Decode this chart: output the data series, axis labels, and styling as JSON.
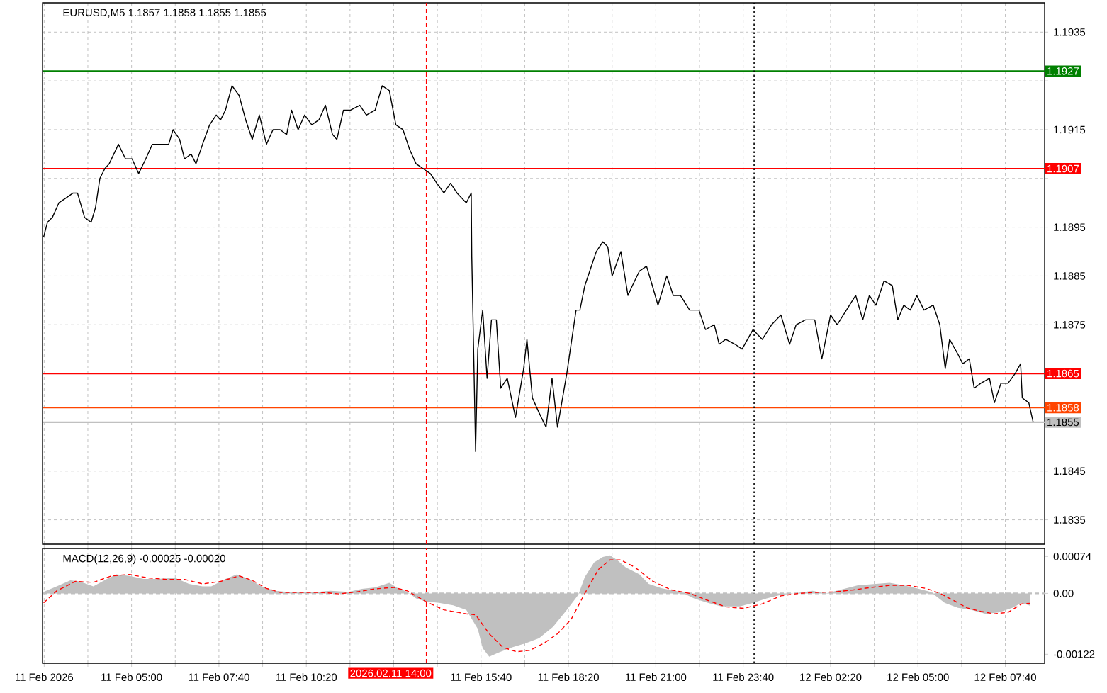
{
  "chart_data": [
    {
      "type": "line",
      "title": "EURUSD,M5 1.1857 1.1858 1.1855 1.1855",
      "xlim": [
        "2026-02-11T02:17",
        "2026-02-12T08:52"
      ],
      "ylim": [
        1.183,
        1.1941
      ],
      "xticks": [
        "2026-02-11T02:20",
        "2026-02-11T03:40",
        "2026-02-11T05:00",
        "2026-02-11T06:20",
        "2026-02-11T07:40",
        "2026-02-11T09:00",
        "2026-02-11T10:20",
        "2026-02-11T11:40",
        "2026-02-11T13:00",
        "2026-02-11T14:20",
        "2026-02-11T15:40",
        "2026-02-11T17:00",
        "2026-02-11T18:20",
        "2026-02-11T19:40",
        "2026-02-11T21:00",
        "2026-02-11T22:20",
        "2026-02-11T23:40",
        "2026-02-12T01:00",
        "2026-02-12T02:20",
        "2026-02-12T03:40",
        "2026-02-12T05:00",
        "2026-02-12T06:20",
        "2026-02-12T07:40"
      ],
      "yticks": [
        1.1835,
        1.1845,
        {
          "value": 1.1855,
          "label": null
        },
        {
          "value": 1.1865,
          "label": null
        },
        1.1875,
        1.1885,
        1.1895,
        {
          "value": 1.1905,
          "label": null
        },
        1.1915,
        {
          "value": 1.1925,
          "label": null
        },
        1.1935
      ],
      "tick_labels": "y",
      "grid": true,
      "ref_lines": [
        {
          "axis": "y",
          "value": 1.1927,
          "label": "1.1927",
          "color": "#008000",
          "line_style": "solid"
        },
        {
          "axis": "y",
          "value": 1.1907,
          "label": "1.1907",
          "color": "#ff0000",
          "line_style": "solid"
        },
        {
          "axis": "y",
          "value": 1.1865,
          "label": "1.1865",
          "color": "#ff0000",
          "line_style": "solid"
        },
        {
          "axis": "y",
          "value": 1.1858,
          "label": "1.1858",
          "color": "#ff4500",
          "line_style": "solid"
        },
        {
          "axis": "y",
          "value": 1.1855,
          "label": "1.1855",
          "color": "#c0c0c0",
          "line_style": "solid"
        },
        {
          "axis": "x",
          "value": "2026-02-11T14:00",
          "color": "#ff0000",
          "line_style": "dashed"
        },
        {
          "axis": "x",
          "value": "2026-02-12T00:00",
          "color": "#000000",
          "line_style": "dotted"
        }
      ],
      "series": [
        {
          "color": "#000000",
          "x": [
            "2026-02-11T02:19",
            "2026-02-11T02:26",
            "2026-02-11T02:35",
            "2026-02-11T02:47",
            "2026-02-11T03:00",
            "2026-02-11T03:13",
            "2026-02-11T03:21",
            "2026-02-11T03:34",
            "2026-02-11T03:46",
            "2026-02-11T03:54",
            "2026-02-11T04:02",
            "2026-02-11T04:11",
            "2026-02-11T04:19",
            "2026-02-11T04:36",
            "2026-02-11T04:49",
            "2026-02-11T05:01",
            "2026-02-11T05:13",
            "2026-02-11T05:26",
            "2026-02-11T05:38",
            "2026-02-11T05:51",
            "2026-02-11T06:08",
            "2026-02-11T06:16",
            "2026-02-11T06:28",
            "2026-02-11T06:37",
            "2026-02-11T06:49",
            "2026-02-11T06:58",
            "2026-02-11T07:10",
            "2026-02-11T07:23",
            "2026-02-11T07:35",
            "2026-02-11T07:43",
            "2026-02-11T07:52",
            "2026-02-11T08:04",
            "2026-02-11T08:17",
            "2026-02-11T08:29",
            "2026-02-11T08:41",
            "2026-02-11T08:54",
            "2026-02-11T09:07",
            "2026-02-11T09:19",
            "2026-02-11T09:32",
            "2026-02-11T09:44",
            "2026-02-11T09:53",
            "2026-02-11T10:05",
            "2026-02-11T10:17",
            "2026-02-11T10:30",
            "2026-02-11T10:43",
            "2026-02-11T10:55",
            "2026-02-11T11:08",
            "2026-02-11T11:16",
            "2026-02-11T11:28",
            "2026-02-11T11:41",
            "2026-02-11T11:58",
            "2026-02-11T12:10",
            "2026-02-11T12:26",
            "2026-02-11T12:39",
            "2026-02-11T12:52",
            "2026-02-11T13:04",
            "2026-02-11T13:17",
            "2026-02-11T13:29",
            "2026-02-11T13:41",
            "2026-02-11T13:54",
            "2026-02-11T14:07",
            "2026-02-11T14:19",
            "2026-02-11T14:32",
            "2026-02-11T14:44",
            "2026-02-11T14:56",
            "2026-02-11T15:13",
            "2026-02-11T15:22",
            "2026-02-11T15:23",
            "2026-02-11T15:30",
            "2026-02-11T15:34",
            "2026-02-11T15:43",
            "2026-02-11T15:51",
            "2026-02-11T15:59",
            "2026-02-11T16:08",
            "2026-02-11T16:16",
            "2026-02-11T16:28",
            "2026-02-11T16:43",
            "2026-02-11T16:58",
            "2026-02-11T17:04",
            "2026-02-11T17:14",
            "2026-02-11T17:26",
            "2026-02-11T17:39",
            "2026-02-11T17:50",
            "2026-02-11T18:00",
            "2026-02-11T18:17",
            "2026-02-11T18:34",
            "2026-02-11T18:41",
            "2026-02-11T18:50",
            "2026-02-11T19:02",
            "2026-02-11T19:11",
            "2026-02-11T19:23",
            "2026-02-11T19:32",
            "2026-02-11T19:40",
            "2026-02-11T19:56",
            "2026-02-11T20:09",
            "2026-02-11T20:17",
            "2026-02-11T20:30",
            "2026-02-11T20:43",
            "2026-02-11T20:51",
            "2026-02-11T21:04",
            "2026-02-11T21:20",
            "2026-02-11T21:32",
            "2026-02-11T21:45",
            "2026-02-11T22:02",
            "2026-02-11T22:19",
            "2026-02-11T22:31",
            "2026-02-11T22:47",
            "2026-02-11T22:56",
            "2026-02-11T23:08",
            "2026-02-11T23:25",
            "2026-02-11T23:38",
            "2026-02-11T23:58",
            "2026-02-12T00:15",
            "2026-02-12T00:32",
            "2026-02-12T00:49",
            "2026-02-12T01:05",
            "2026-02-12T01:17",
            "2026-02-12T01:34",
            "2026-02-12T01:51",
            "2026-02-12T02:04",
            "2026-02-12T02:20",
            "2026-02-12T02:32",
            "2026-02-12T02:49",
            "2026-02-12T03:06",
            "2026-02-12T03:19",
            "2026-02-12T03:31",
            "2026-02-12T03:43",
            "2026-02-12T03:58",
            "2026-02-12T04:13",
            "2026-02-12T04:23",
            "2026-02-12T04:34",
            "2026-02-12T04:46",
            "2026-02-12T04:58",
            "2026-02-12T05:11",
            "2026-02-12T05:28",
            "2026-02-12T05:40",
            "2026-02-12T05:50",
            "2026-02-12T05:58",
            "2026-02-12T06:13",
            "2026-02-12T06:22",
            "2026-02-12T06:34",
            "2026-02-12T06:43",
            "2026-02-12T06:55",
            "2026-02-12T07:11",
            "2026-02-12T07:20",
            "2026-02-12T07:32",
            "2026-02-12T07:45",
            "2026-02-12T07:58",
            "2026-02-12T08:08",
            "2026-02-12T08:11",
            "2026-02-12T08:23",
            "2026-02-12T08:31"
          ],
          "values": [
            1.1893,
            1.1896,
            1.1897,
            1.19,
            1.1901,
            1.1902,
            1.1902,
            1.1897,
            1.1896,
            1.1899,
            1.1905,
            1.1907,
            1.1908,
            1.1912,
            1.1909,
            1.1909,
            1.1906,
            1.1909,
            1.1912,
            1.1912,
            1.1912,
            1.1915,
            1.1913,
            1.1909,
            1.191,
            1.1908,
            1.1912,
            1.1916,
            1.1918,
            1.1917,
            1.1919,
            1.1924,
            1.1922,
            1.1917,
            1.1913,
            1.1918,
            1.1912,
            1.1915,
            1.1915,
            1.1914,
            1.1919,
            1.1915,
            1.1918,
            1.1916,
            1.1917,
            1.192,
            1.1914,
            1.1913,
            1.1919,
            1.1919,
            1.192,
            1.1918,
            1.1919,
            1.1924,
            1.1923,
            1.1916,
            1.1915,
            1.1911,
            1.1908,
            1.1907,
            1.1906,
            1.1904,
            1.1902,
            1.1904,
            1.1902,
            1.19,
            1.1902,
            1.1889,
            1.1849,
            1.187,
            1.1878,
            1.1864,
            1.1876,
            1.1876,
            1.1862,
            1.1864,
            1.1856,
            1.1866,
            1.1872,
            1.186,
            1.1857,
            1.1854,
            1.1864,
            1.1854,
            1.1865,
            1.1878,
            1.1878,
            1.1883,
            1.1887,
            1.189,
            1.1892,
            1.1891,
            1.1885,
            1.189,
            1.1881,
            1.1883,
            1.1886,
            1.1887,
            1.1884,
            1.1879,
            1.1885,
            1.1881,
            1.1881,
            1.1878,
            1.1878,
            1.1874,
            1.1875,
            1.1871,
            1.1872,
            1.1871,
            1.187,
            1.1874,
            1.1872,
            1.1875,
            1.1877,
            1.1871,
            1.1875,
            1.1876,
            1.1876,
            1.1868,
            1.1877,
            1.1875,
            1.1878,
            1.1881,
            1.1876,
            1.1881,
            1.1879,
            1.1884,
            1.1883,
            1.1876,
            1.1879,
            1.1878,
            1.1881,
            1.1878,
            1.1879,
            1.1875,
            1.1866,
            1.1872,
            1.1869,
            1.1867,
            1.1868,
            1.1862,
            1.1863,
            1.1864,
            1.1859,
            1.1863,
            1.1863,
            1.1865,
            1.1867,
            1.186,
            1.1859,
            1.1855
          ]
        }
      ]
    },
    {
      "type": "line",
      "title": "MACD(12,26,9) -0.00025 -0.00020",
      "xlim": [
        "2026-02-11T02:17",
        "2026-02-12T08:52"
      ],
      "ylim": [
        -0.0014,
        0.0009
      ],
      "xticks": [
        {
          "value": "2026-02-11T02:20",
          "label": "11 Feb 2026"
        },
        {
          "value": "2026-02-11T03:40",
          "label": null
        },
        {
          "value": "2026-02-11T05:00",
          "label": "11 Feb 05:00"
        },
        {
          "value": "2026-02-11T06:20",
          "label": null
        },
        {
          "value": "2026-02-11T07:40",
          "label": "11 Feb 07:40"
        },
        {
          "value": "2026-02-11T09:00",
          "label": null
        },
        {
          "value": "2026-02-11T10:20",
          "label": "11 Feb 10:20"
        },
        {
          "value": "2026-02-11T11:40",
          "label": null
        },
        {
          "value": "2026-02-11T13:00",
          "label": null
        },
        {
          "value": "2026-02-11T14:20",
          "label": null
        },
        {
          "value": "2026-02-11T15:40",
          "label": "11 Feb 15:40"
        },
        {
          "value": "2026-02-11T17:00",
          "label": null
        },
        {
          "value": "2026-02-11T18:20",
          "label": "11 Feb 18:20"
        },
        {
          "value": "2026-02-11T19:40",
          "label": null
        },
        {
          "value": "2026-02-11T21:00",
          "label": "11 Feb 21:00"
        },
        {
          "value": "2026-02-11T22:20",
          "label": null
        },
        {
          "value": "2026-02-11T23:40",
          "label": "11 Feb 23:40"
        },
        {
          "value": "2026-02-12T01:00",
          "label": null
        },
        {
          "value": "2026-02-12T02:20",
          "label": "12 Feb 02:20"
        },
        {
          "value": "2026-02-12T03:40",
          "label": null
        },
        {
          "value": "2026-02-12T05:00",
          "label": "12 Feb 05:00"
        },
        {
          "value": "2026-02-12T06:20",
          "label": null
        },
        {
          "value": "2026-02-12T07:40",
          "label": "12 Feb 07:40"
        }
      ],
      "yticks": [
        0.00074,
        {
          "value": 0,
          "label": "0.00"
        },
        -0.00122
      ],
      "grid": "x",
      "ref_lines": [
        {
          "axis": "y",
          "value": 0,
          "color": "#c0c0c0",
          "line_style": "dashed"
        },
        {
          "axis": "x",
          "value": "2026-02-11T14:00",
          "label": "2026.02.11 14:00",
          "color": "#ff0000",
          "line_style": "dashed"
        },
        {
          "axis": "x",
          "value": "2026-02-12T00:00",
          "color": "#000000",
          "line_style": "dotted"
        }
      ],
      "series": [
        {
          "type": "area",
          "color": "#c0c0c0",
          "x": [
            "2026-02-11T02:19",
            "2026-02-11T02:43",
            "2026-02-11T03:08",
            "2026-02-11T03:25",
            "2026-02-11T03:50",
            "2026-02-11T04:15",
            "2026-02-11T04:32",
            "2026-02-11T04:56",
            "2026-02-11T05:22",
            "2026-02-11T05:47",
            "2026-02-11T06:20",
            "2026-02-11T06:45",
            "2026-02-11T07:10",
            "2026-02-11T07:26",
            "2026-02-11T07:52",
            "2026-02-11T08:13",
            "2026-02-11T08:34",
            "2026-02-11T08:58",
            "2026-02-11T09:23",
            "2026-02-11T09:56",
            "2026-02-11T10:30",
            "2026-02-11T11:04",
            "2026-02-11T11:37",
            "2026-02-11T12:02",
            "2026-02-11T12:26",
            "2026-02-11T12:52",
            "2026-02-11T13:08",
            "2026-02-11T13:25",
            "2026-02-11T13:41",
            "2026-02-11T13:58",
            "2026-02-11T14:23",
            "2026-02-11T14:49",
            "2026-02-11T15:13",
            "2026-02-11T15:34",
            "2026-02-11T15:43",
            "2026-02-11T15:55",
            "2026-02-11T16:11",
            "2026-02-11T16:37",
            "2026-02-11T17:02",
            "2026-02-11T17:26",
            "2026-02-11T17:52",
            "2026-02-11T18:17",
            "2026-02-11T18:38",
            "2026-02-11T18:50",
            "2026-02-11T19:07",
            "2026-02-11T19:23",
            "2026-02-11T19:36",
            "2026-02-11T19:49",
            "2026-02-11T20:05",
            "2026-02-11T20:30",
            "2026-02-11T20:47",
            "2026-02-11T21:11",
            "2026-02-11T21:45",
            "2026-02-11T22:10",
            "2026-02-11T22:35",
            "2026-02-11T23:00",
            "2026-02-11T23:34",
            "2026-02-11T23:58",
            "2026-02-12T00:23",
            "2026-02-12T00:49",
            "2026-02-12T01:13",
            "2026-02-12T01:47",
            "2026-02-12T02:11",
            "2026-02-12T02:37",
            "2026-02-12T03:10",
            "2026-02-12T03:43",
            "2026-02-12T04:08",
            "2026-02-12T04:34",
            "2026-02-12T04:58",
            "2026-02-12T05:23",
            "2026-02-12T05:49",
            "2026-02-12T06:13",
            "2026-02-12T06:38",
            "2026-02-12T07:04",
            "2026-02-12T07:28",
            "2026-02-12T07:53",
            "2026-02-12T08:10",
            "2026-02-12T08:26"
          ],
          "values": [
            3e-05,
            0.00014,
            0.00026,
            0.00024,
            0.00014,
            0.00029,
            0.00038,
            0.00035,
            0.00029,
            0.00029,
            0.00031,
            0.00019,
            0.00014,
            0.00014,
            0.00029,
            0.00038,
            0.00029,
            0.00014,
            5e-05,
            2e-05,
            2e-05,
            5e-05,
            3e-05,
            9e-05,
            0.00012,
            0.00021,
            0.0001,
            3e-05,
            -0.0001,
            -0.00016,
            -0.00019,
            -0.00024,
            -0.00033,
            -0.00071,
            -0.0011,
            -0.00127,
            -0.00119,
            -0.00108,
            -0.001,
            -0.0009,
            -0.00067,
            -0.00033,
            -3e-05,
            0.00033,
            0.00062,
            0.00073,
            0.00076,
            0.00067,
            0.00052,
            0.00038,
            0.00019,
            0.0001,
            3e-05,
            -0.0001,
            -0.00019,
            -0.00026,
            -0.00026,
            -0.00019,
            -0.0001,
            -3e-05,
            0.0,
            5e-05,
            0.0,
            7e-05,
            0.00016,
            0.00019,
            0.00021,
            0.00016,
            0.0001,
            3e-05,
            -0.00019,
            -0.00029,
            -0.00033,
            -0.00041,
            -0.00038,
            -0.00029,
            -0.00019,
            -0.00025
          ]
        },
        {
          "type": "line",
          "color": "#ff0000",
          "line_style": "dashed",
          "x": [
            "2026-02-11T02:19",
            "2026-02-11T02:43",
            "2026-02-11T03:17",
            "2026-02-11T03:50",
            "2026-02-11T04:23",
            "2026-02-11T04:56",
            "2026-02-11T05:30",
            "2026-02-11T06:04",
            "2026-02-11T06:37",
            "2026-02-11T07:10",
            "2026-02-11T07:43",
            "2026-02-11T08:17",
            "2026-02-11T08:41",
            "2026-02-11T09:07",
            "2026-02-11T09:32",
            "2026-02-11T10:05",
            "2026-02-11T10:47",
            "2026-02-11T11:20",
            "2026-02-11T11:53",
            "2026-02-11T12:26",
            "2026-02-11T13:00",
            "2026-02-11T13:25",
            "2026-02-11T13:58",
            "2026-02-11T14:32",
            "2026-02-11T15:13",
            "2026-02-11T15:30",
            "2026-02-11T15:55",
            "2026-02-11T16:20",
            "2026-02-11T16:45",
            "2026-02-11T17:10",
            "2026-02-11T17:35",
            "2026-02-11T18:00",
            "2026-02-11T18:25",
            "2026-02-11T18:50",
            "2026-02-11T19:15",
            "2026-02-11T19:36",
            "2026-02-11T19:56",
            "2026-02-11T20:22",
            "2026-02-11T20:55",
            "2026-02-11T21:28",
            "2026-02-11T22:02",
            "2026-02-11T22:35",
            "2026-02-11T23:08",
            "2026-02-11T23:41",
            "2026-02-12T00:15",
            "2026-02-12T00:49",
            "2026-02-12T01:22",
            "2026-02-12T01:55",
            "2026-02-12T02:28",
            "2026-02-12T03:02",
            "2026-02-12T03:35",
            "2026-02-12T04:08",
            "2026-02-12T04:41",
            "2026-02-12T05:15",
            "2026-02-12T05:40",
            "2026-02-12T06:05",
            "2026-02-12T06:30",
            "2026-02-12T06:55",
            "2026-02-12T07:20",
            "2026-02-12T07:45",
            "2026-02-12T08:10",
            "2026-02-12T08:26"
          ],
          "values": [
            -0.00019,
            5e-05,
            0.00024,
            0.00022,
            0.00035,
            0.00038,
            0.00031,
            0.00028,
            0.00028,
            0.00019,
            0.00024,
            0.00035,
            0.00026,
            0.0001,
            2e-05,
            2e-05,
            2e-05,
            -1e-05,
            3e-05,
            9e-05,
            0.00012,
            5e-05,
            -0.00016,
            -0.00033,
            -0.00041,
            -0.00043,
            -0.00081,
            -0.00108,
            -0.00117,
            -0.00114,
            -0.001,
            -0.00081,
            -0.00052,
            0.0,
            0.00048,
            0.00067,
            0.00067,
            0.00052,
            0.00024,
            7e-05,
            0.0,
            -0.00014,
            -0.00027,
            -0.0003,
            -0.00021,
            -5e-05,
            0.0,
            2e-05,
            3e-05,
            7e-05,
            0.00012,
            0.00016,
            0.00016,
            0.0001,
            0.0,
            -0.00014,
            -0.00029,
            -0.00036,
            -0.00041,
            -0.00038,
            -0.00021,
            -0.0002
          ]
        }
      ]
    }
  ]
}
